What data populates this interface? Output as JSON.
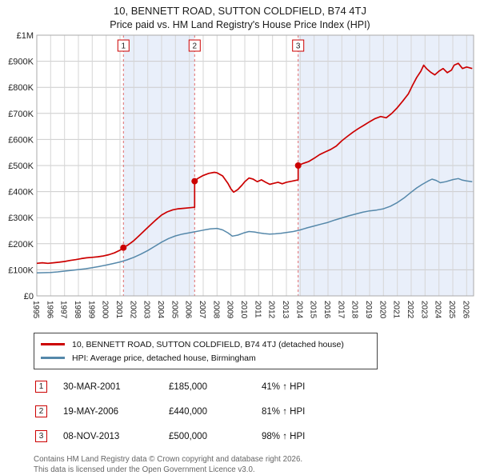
{
  "title": "10, BENNETT ROAD, SUTTON COLDFIELD, B74 4TJ",
  "subtitle": "Price paid vs. HM Land Registry's House Price Index (HPI)",
  "chart_data": {
    "type": "line",
    "x_domain": [
      1995,
      2026.5
    ],
    "y_domain_k": [
      0,
      1000
    ],
    "x_ticks": [
      1995,
      1996,
      1997,
      1998,
      1999,
      2000,
      2001,
      2002,
      2003,
      2004,
      2005,
      2006,
      2007,
      2008,
      2009,
      2010,
      2011,
      2012,
      2013,
      2014,
      2015,
      2016,
      2017,
      2018,
      2019,
      2020,
      2021,
      2022,
      2023,
      2024,
      2025,
      2026
    ],
    "y_ticks": [
      "£0",
      "£100K",
      "£200K",
      "£300K",
      "£400K",
      "£500K",
      "£600K",
      "£700K",
      "£800K",
      "£900K",
      "£1M"
    ],
    "unit": "GBP_thousands",
    "colors": {
      "grid": "#cccccc",
      "vgrid": "#d6d6d6",
      "band": "#e9effa",
      "sale_line": "#e06c6c",
      "sale_dot": "#cc0000",
      "plot_border": "#aaaaaa",
      "axis_text": "#222222"
    },
    "bands": [
      [
        2001.25,
        2006.38
      ],
      [
        2013.85,
        2026.5
      ]
    ],
    "series": [
      {
        "name": "10, BENNETT ROAD, SUTTON COLDFIELD, B74 4TJ (detached house)",
        "color": "#cc0000",
        "width": 1.7,
        "points": [
          [
            1995,
            125
          ],
          [
            1995.4,
            127
          ],
          [
            1995.8,
            125
          ],
          [
            1996.2,
            127
          ],
          [
            1996.6,
            129
          ],
          [
            1997,
            132
          ],
          [
            1997.4,
            136
          ],
          [
            1997.8,
            139
          ],
          [
            1998.2,
            143
          ],
          [
            1998.6,
            146
          ],
          [
            1999,
            148
          ],
          [
            1999.4,
            150
          ],
          [
            1999.8,
            153
          ],
          [
            2000.2,
            158
          ],
          [
            2000.6,
            165
          ],
          [
            2001,
            175
          ],
          [
            2001.25,
            185
          ],
          [
            2001.6,
            196
          ],
          [
            2002,
            212
          ],
          [
            2002.4,
            232
          ],
          [
            2002.8,
            252
          ],
          [
            2003.2,
            272
          ],
          [
            2003.6,
            292
          ],
          [
            2004,
            310
          ],
          [
            2004.4,
            322
          ],
          [
            2004.8,
            330
          ],
          [
            2005.2,
            334
          ],
          [
            2005.6,
            336
          ],
          [
            2006,
            338
          ],
          [
            2006.38,
            340
          ],
          [
            2006.38,
            440
          ],
          [
            2006.6,
            450
          ],
          [
            2007,
            462
          ],
          [
            2007.4,
            470
          ],
          [
            2007.8,
            474
          ],
          [
            2008,
            472
          ],
          [
            2008.4,
            460
          ],
          [
            2008.8,
            430
          ],
          [
            2009,
            410
          ],
          [
            2009.2,
            398
          ],
          [
            2009.5,
            408
          ],
          [
            2009.8,
            425
          ],
          [
            2010,
            438
          ],
          [
            2010.3,
            452
          ],
          [
            2010.6,
            448
          ],
          [
            2010.9,
            438
          ],
          [
            2011.2,
            445
          ],
          [
            2011.5,
            436
          ],
          [
            2011.8,
            428
          ],
          [
            2012.1,
            432
          ],
          [
            2012.4,
            436
          ],
          [
            2012.7,
            430
          ],
          [
            2013,
            436
          ],
          [
            2013.4,
            440
          ],
          [
            2013.85,
            445
          ],
          [
            2013.85,
            500
          ],
          [
            2014.2,
            508
          ],
          [
            2014.6,
            515
          ],
          [
            2015,
            528
          ],
          [
            2015.4,
            542
          ],
          [
            2015.8,
            552
          ],
          [
            2016.2,
            562
          ],
          [
            2016.6,
            575
          ],
          [
            2017,
            595
          ],
          [
            2017.4,
            612
          ],
          [
            2017.8,
            628
          ],
          [
            2018.2,
            642
          ],
          [
            2018.6,
            655
          ],
          [
            2019,
            668
          ],
          [
            2019.4,
            680
          ],
          [
            2019.8,
            688
          ],
          [
            2020.2,
            683
          ],
          [
            2020.6,
            700
          ],
          [
            2021,
            722
          ],
          [
            2021.4,
            748
          ],
          [
            2021.8,
            775
          ],
          [
            2022.1,
            808
          ],
          [
            2022.4,
            838
          ],
          [
            2022.7,
            862
          ],
          [
            2022.9,
            885
          ],
          [
            2023.1,
            872
          ],
          [
            2023.4,
            858
          ],
          [
            2023.7,
            848
          ],
          [
            2024,
            862
          ],
          [
            2024.3,
            872
          ],
          [
            2024.6,
            856
          ],
          [
            2024.9,
            866
          ],
          [
            2025.1,
            885
          ],
          [
            2025.4,
            892
          ],
          [
            2025.7,
            872
          ],
          [
            2026,
            878
          ],
          [
            2026.4,
            872
          ]
        ]
      },
      {
        "name": "HPI: Average price, detached house, Birmingham",
        "color": "#5588aa",
        "width": 1.5,
        "points": [
          [
            1995,
            88
          ],
          [
            1995.5,
            89
          ],
          [
            1996,
            90
          ],
          [
            1996.5,
            92
          ],
          [
            1997,
            95
          ],
          [
            1997.5,
            98
          ],
          [
            1998,
            101
          ],
          [
            1998.5,
            104
          ],
          [
            1999,
            108
          ],
          [
            1999.5,
            113
          ],
          [
            2000,
            118
          ],
          [
            2000.5,
            124
          ],
          [
            2001,
            130
          ],
          [
            2001.5,
            138
          ],
          [
            2002,
            148
          ],
          [
            2002.5,
            160
          ],
          [
            2003,
            174
          ],
          [
            2003.5,
            190
          ],
          [
            2004,
            206
          ],
          [
            2004.5,
            220
          ],
          [
            2005,
            230
          ],
          [
            2005.5,
            237
          ],
          [
            2006,
            242
          ],
          [
            2006.5,
            247
          ],
          [
            2007,
            252
          ],
          [
            2007.5,
            257
          ],
          [
            2008,
            259
          ],
          [
            2008.4,
            253
          ],
          [
            2008.8,
            241
          ],
          [
            2009.1,
            229
          ],
          [
            2009.5,
            233
          ],
          [
            2009.9,
            241
          ],
          [
            2010.3,
            247
          ],
          [
            2010.7,
            245
          ],
          [
            2011,
            242
          ],
          [
            2011.4,
            239
          ],
          [
            2011.8,
            237
          ],
          [
            2012.2,
            238
          ],
          [
            2012.6,
            240
          ],
          [
            2013,
            243
          ],
          [
            2013.5,
            247
          ],
          [
            2014,
            253
          ],
          [
            2014.5,
            261
          ],
          [
            2015,
            268
          ],
          [
            2015.5,
            275
          ],
          [
            2016,
            282
          ],
          [
            2016.5,
            291
          ],
          [
            2017,
            299
          ],
          [
            2017.5,
            307
          ],
          [
            2018,
            314
          ],
          [
            2018.5,
            321
          ],
          [
            2019,
            326
          ],
          [
            2019.5,
            329
          ],
          [
            2020,
            334
          ],
          [
            2020.5,
            344
          ],
          [
            2021,
            358
          ],
          [
            2021.5,
            376
          ],
          [
            2022,
            398
          ],
          [
            2022.4,
            414
          ],
          [
            2022.8,
            428
          ],
          [
            2023.2,
            440
          ],
          [
            2023.5,
            448
          ],
          [
            2023.8,
            443
          ],
          [
            2024.1,
            434
          ],
          [
            2024.5,
            438
          ],
          [
            2025,
            446
          ],
          [
            2025.4,
            450
          ],
          [
            2025.7,
            444
          ],
          [
            2026,
            441
          ],
          [
            2026.4,
            438
          ]
        ]
      }
    ],
    "sales": [
      {
        "label": "1",
        "x": 2001.25,
        "y_k": 185,
        "date": "30-MAR-2001",
        "price": "£185,000",
        "hpi": "41% ↑ HPI"
      },
      {
        "label": "2",
        "x": 2006.38,
        "y_k": 440,
        "date": "19-MAY-2006",
        "price": "£440,000",
        "hpi": "81% ↑ HPI"
      },
      {
        "label": "3",
        "x": 2013.85,
        "y_k": 500,
        "date": "08-NOV-2013",
        "price": "£500,000",
        "hpi": "98% ↑ HPI"
      }
    ]
  },
  "legend": {
    "items": [
      {
        "label": "10, BENNETT ROAD, SUTTON COLDFIELD, B74 4TJ (detached house)",
        "color": "#cc0000"
      },
      {
        "label": "HPI: Average price, detached house, Birmingham",
        "color": "#5588aa"
      }
    ]
  },
  "footer": {
    "line1": "Contains HM Land Registry data © Crown copyright and database right 2026.",
    "line2": "This data is licensed under the Open Government Licence v3.0."
  }
}
